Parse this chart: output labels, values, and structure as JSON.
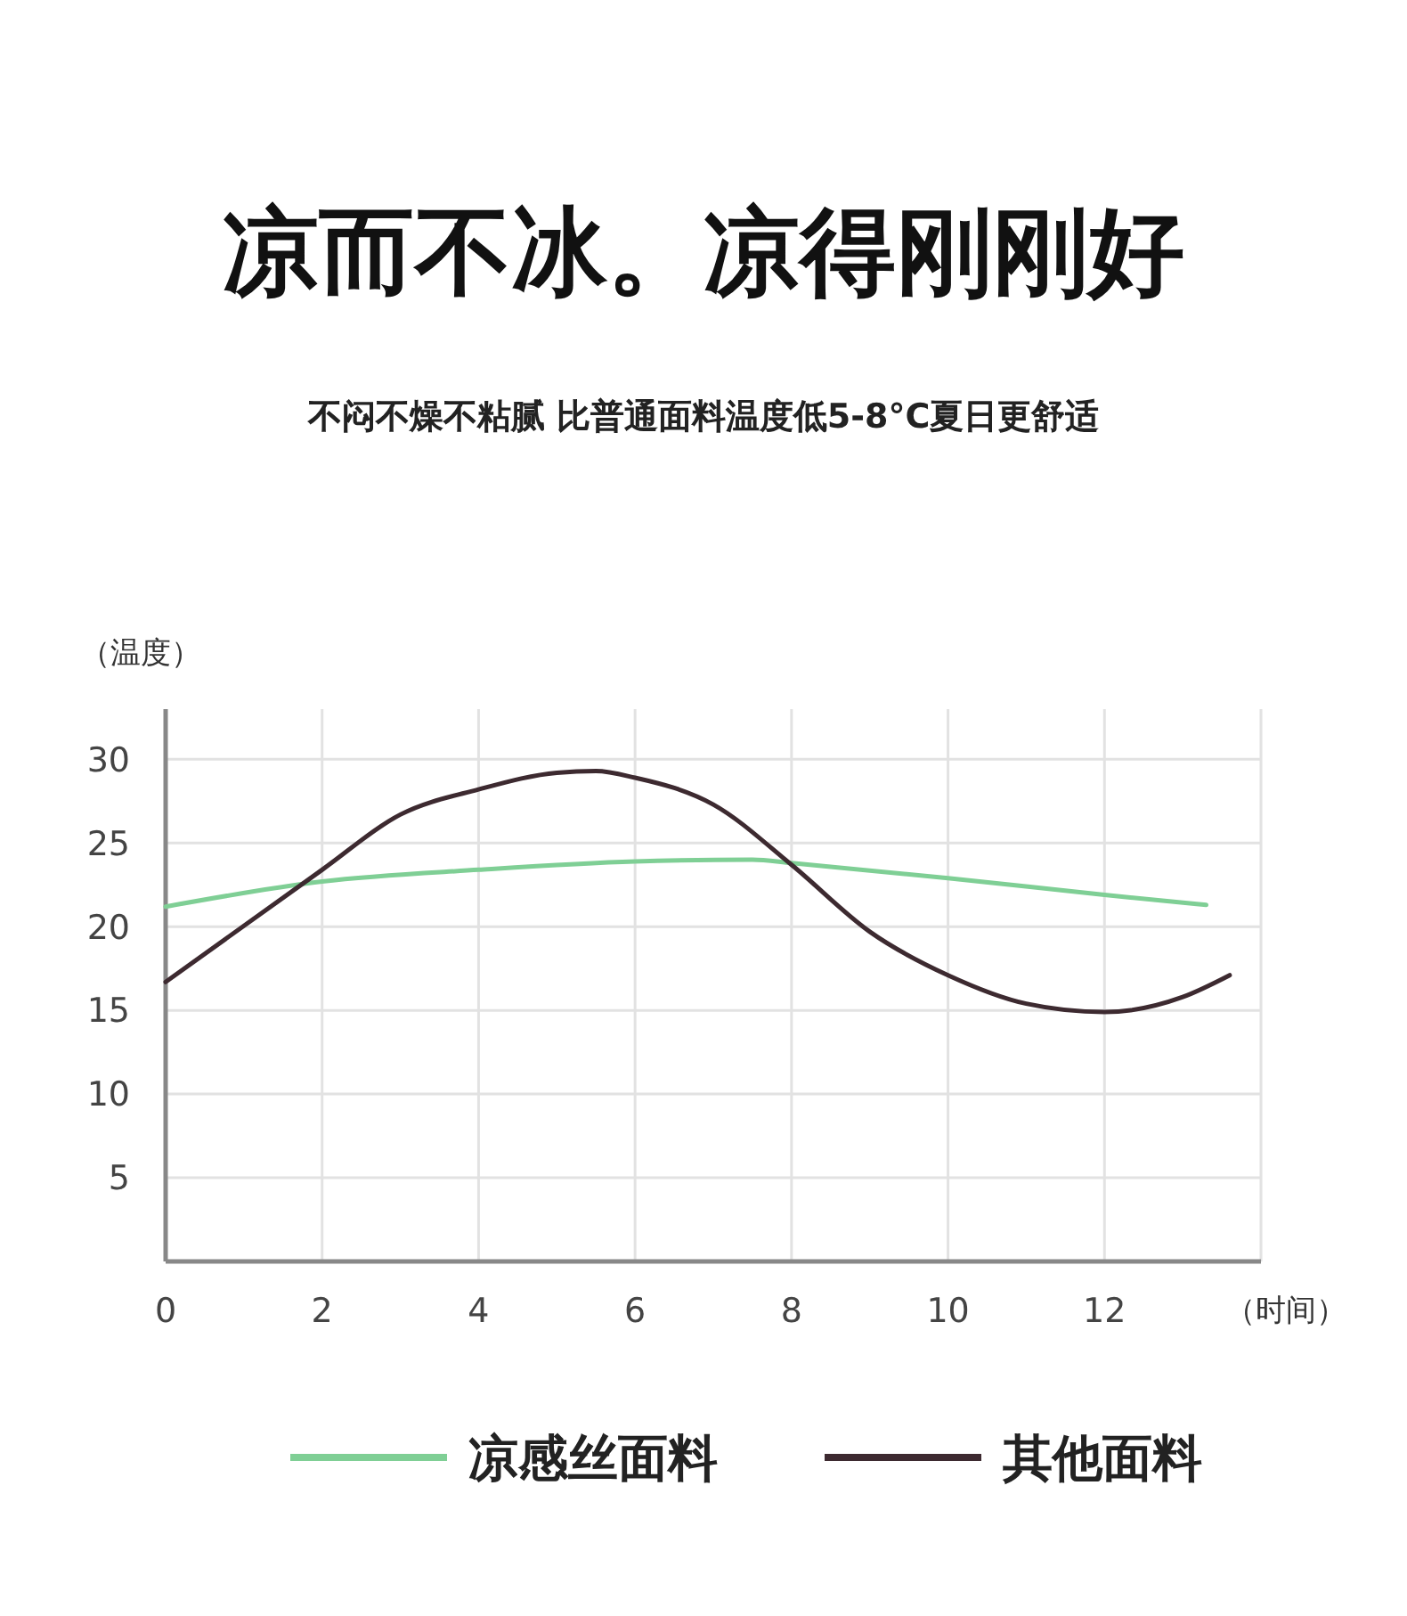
{
  "chart_data": {
    "type": "line",
    "title": "凉而不冰。凉得刚刚好",
    "subtitle": "不闷不燥不粘腻 比普通面料温度低5-8°C夏日更舒适",
    "xlabel": "（时间）",
    "ylabel": "（温度）",
    "xlim": [
      0,
      14
    ],
    "ylim": [
      0,
      33
    ],
    "xticks": [
      0,
      2,
      4,
      6,
      8,
      10,
      12
    ],
    "yticks": [
      5,
      10,
      15,
      20,
      25,
      30
    ],
    "grid": true,
    "legend": "bottom",
    "marker": "none",
    "line_style": "solid",
    "series": [
      {
        "name": "凉感丝面料",
        "color": "#7fcf95",
        "x": [
          0,
          2,
          4,
          6,
          7.5,
          8,
          10,
          12,
          13.3
        ],
        "values": [
          21.2,
          22.7,
          23.4,
          23.9,
          24,
          23.8,
          22.9,
          21.9,
          21.3
        ]
      },
      {
        "name": "其他面料",
        "color": "#3d2a30",
        "x": [
          0,
          2,
          3,
          4,
          5,
          5.5,
          6,
          7,
          8,
          9,
          10,
          11,
          12,
          13,
          13.6
        ],
        "values": [
          16.7,
          23.4,
          26.7,
          28.2,
          29.2,
          29.3,
          28.9,
          27.3,
          23.7,
          19.7,
          17.1,
          15.4,
          14.9,
          15.8,
          17.1
        ]
      }
    ]
  }
}
